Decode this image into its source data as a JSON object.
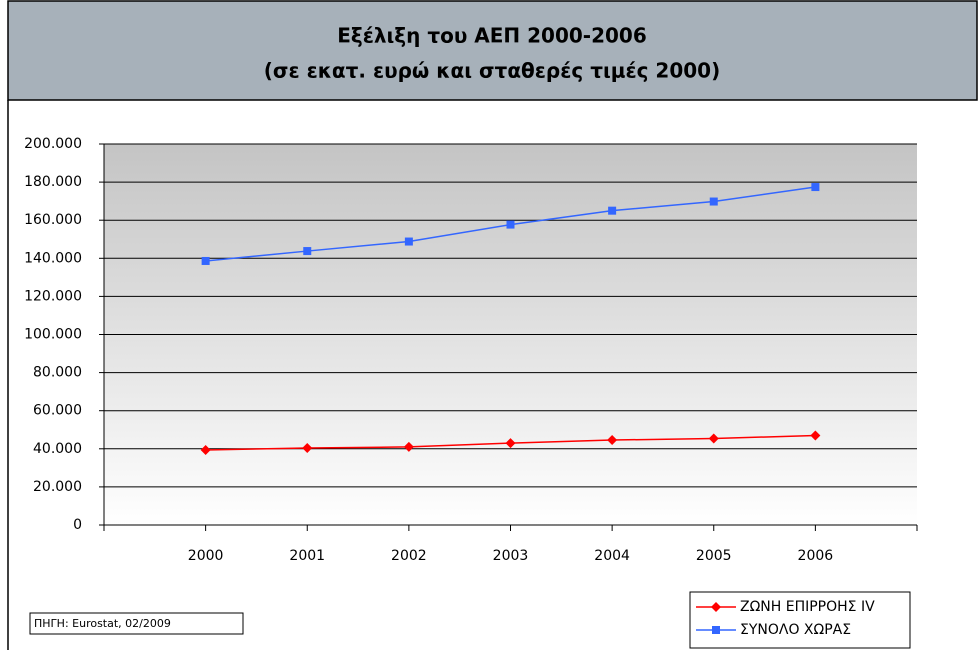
{
  "chart_data": {
    "type": "line",
    "title": "Εξέλιξη του ΑΕΠ 2000-2006",
    "subtitle": "(σε εκατ. ευρώ και σταθερές τιμές 2000)",
    "source": "ΠΗΓΗ: Eurostat, 02/2009",
    "categories": [
      "2000",
      "2001",
      "2002",
      "2003",
      "2004",
      "2005",
      "2006"
    ],
    "series": [
      {
        "name": "ΖΩΝΗ ΕΠΙΡΡΟΗΣ IV",
        "color": "#ff0000",
        "marker": "diamond",
        "values": [
          39400,
          40400,
          41000,
          43000,
          44600,
          45400,
          47000
        ]
      },
      {
        "name": "ΣΥΝΟΛΟ ΧΩΡΑΣ",
        "color": "#3366ff",
        "marker": "square",
        "values": [
          138600,
          143800,
          148800,
          157700,
          165000,
          169800,
          177400
        ]
      }
    ],
    "ylim": [
      0,
      200000
    ],
    "yticks": [
      0,
      {
        "value": 20000,
        "label": "20.000"
      },
      {
        "value": 40000,
        "label": "40.000"
      },
      {
        "value": 60000,
        "label": "60.000"
      },
      {
        "value": 80000,
        "label": "80.000"
      },
      {
        "value": 100000,
        "label": "100.000"
      },
      {
        "value": 120000,
        "label": "120.000"
      },
      {
        "value": 140000,
        "label": "140.000"
      },
      {
        "value": 160000,
        "label": "160.000"
      },
      {
        "value": 180000,
        "label": "180.000"
      },
      {
        "value": 200000,
        "label": "200.000"
      }
    ],
    "grid": true,
    "legend": "bottom-right"
  }
}
